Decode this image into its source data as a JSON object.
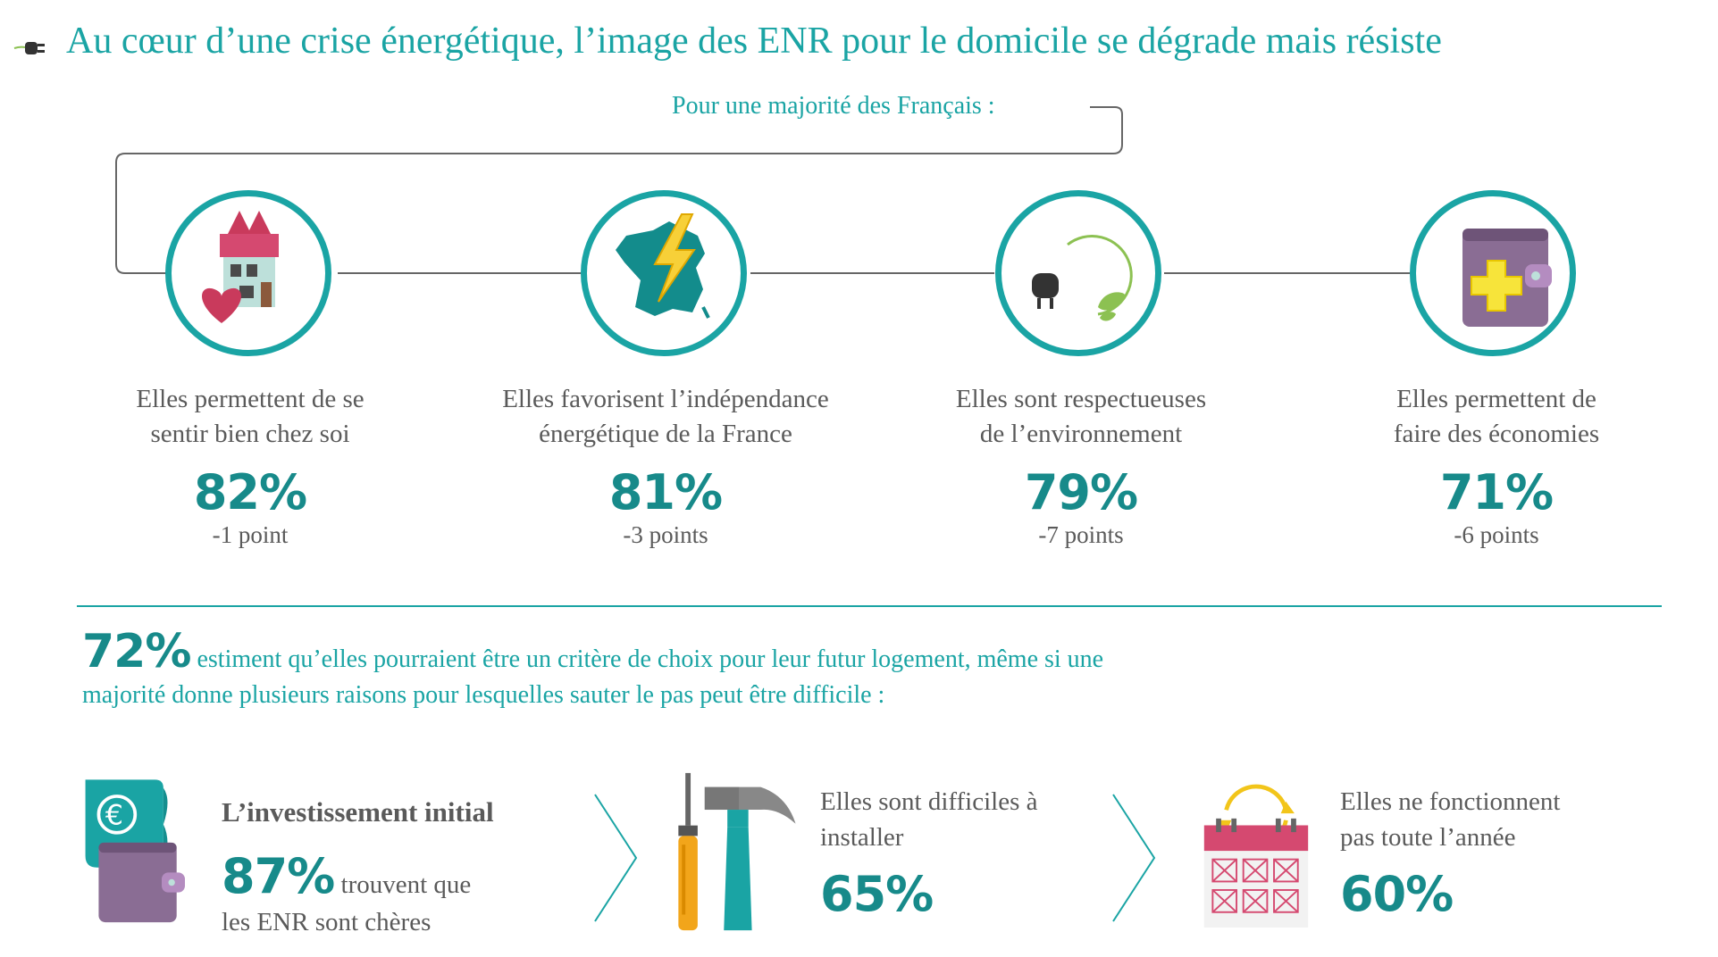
{
  "header": {
    "title": "Au cœur d’une crise énergétique, l’image des ENR pour le domicile se dégrade mais résiste",
    "subtitle": "Pour une majorité des Français :"
  },
  "benefits": [
    {
      "icon": "house-heart-icon",
      "text_line1": "Elles permettent de se",
      "text_line2": "sentir bien chez soi",
      "percent": "82%",
      "change": "-1 point"
    },
    {
      "icon": "france-lightning-icon",
      "text_line1": "Elles favorisent l’indépendance",
      "text_line2": "énergétique de la France",
      "percent": "81%",
      "change": "-3 points"
    },
    {
      "icon": "plug-leaf-icon",
      "text_line1": "Elles sont respectueuses",
      "text_line2": "de l’environnement",
      "percent": "79%",
      "change": "-7 points"
    },
    {
      "icon": "wallet-plus-icon",
      "text_line1": "Elles permettent de",
      "text_line2": "faire des économies",
      "percent": "71%",
      "change": "-6 points"
    }
  ],
  "criterion": {
    "percent": "72%",
    "text_line1": " estiment qu’elles pourraient être un critère de choix pour leur futur logement, même si une",
    "text_line2": "majorité donne plusieurs raisons pour lesquelles sauter le pas peut être difficile :"
  },
  "reasons": [
    {
      "icon": "euro-wallet-icon",
      "title": "L’investissement initial",
      "percent": "87%",
      "text_line1": " trouvent que",
      "text_line2": "les ENR sont chères"
    },
    {
      "icon": "tools-icon",
      "text_line1": "Elles sont difficiles à",
      "text_line2": "installer",
      "percent": "65%"
    },
    {
      "icon": "calendar-cycle-icon",
      "text_line1": "Elles ne fonctionnent",
      "text_line2": "pas toute l’année",
      "percent": "60%"
    }
  ],
  "colors": {
    "accent": "#1aa4a4",
    "accent_dark": "#178a8a",
    "text": "#5a5a5a"
  }
}
